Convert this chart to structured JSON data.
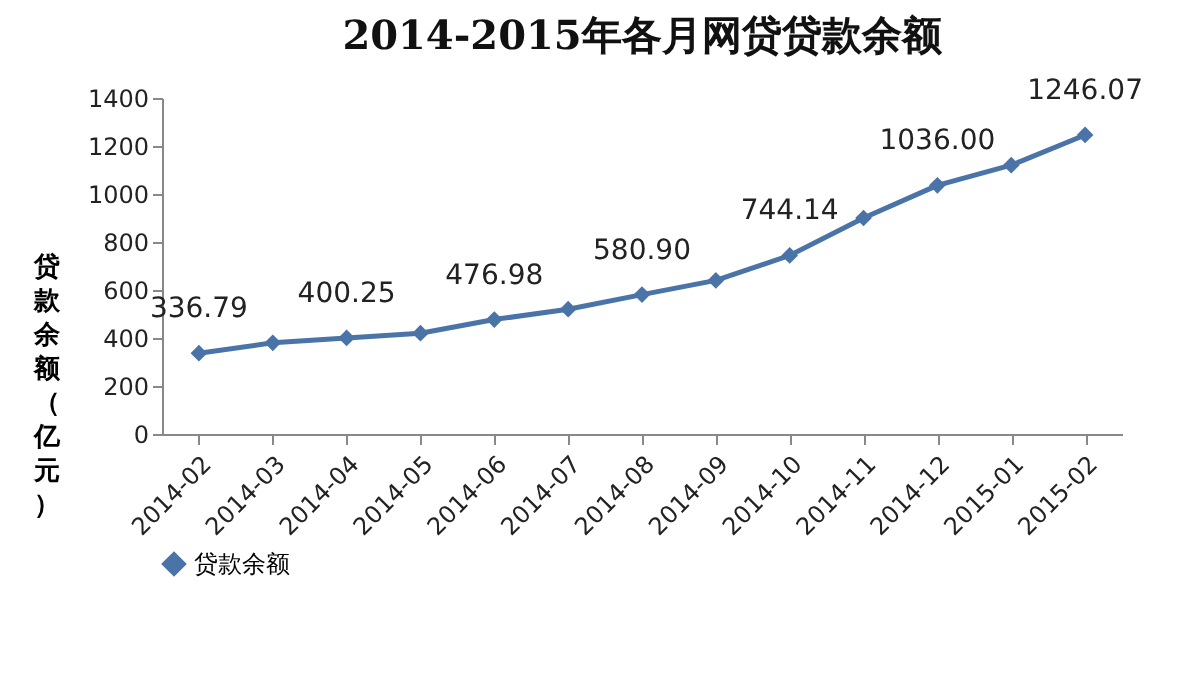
{
  "chart_data": {
    "type": "line",
    "title": "2014-2015年各月网贷贷款余额",
    "ylabel": "贷款余额（亿元）",
    "categories": [
      "2014-02",
      "2014-03",
      "2014-04",
      "2014-05",
      "2014-06",
      "2014-07",
      "2014-08",
      "2014-09",
      "2014-10",
      "2014-11",
      "2014-12",
      "2015-01",
      "2015-02"
    ],
    "series": [
      {
        "name": "贷款余额",
        "color": "#4a74a8",
        "values": [
          336.79,
          380,
          400.25,
          420,
          476.98,
          520,
          580.9,
          640,
          744.14,
          900,
          1036.0,
          1120,
          1246.07
        ],
        "value_labels": [
          "336.79",
          null,
          "400.25",
          null,
          "476.98",
          null,
          "580.90",
          null,
          "744.14",
          null,
          "1036.00",
          null,
          "1246.07"
        ]
      }
    ],
    "ylim": [
      0,
      1400
    ],
    "yticks": [
      0,
      200,
      400,
      600,
      800,
      1000,
      1200,
      1400
    ],
    "grid": false,
    "legend": "bottom",
    "marker": "diamond",
    "line_style": "solid"
  }
}
